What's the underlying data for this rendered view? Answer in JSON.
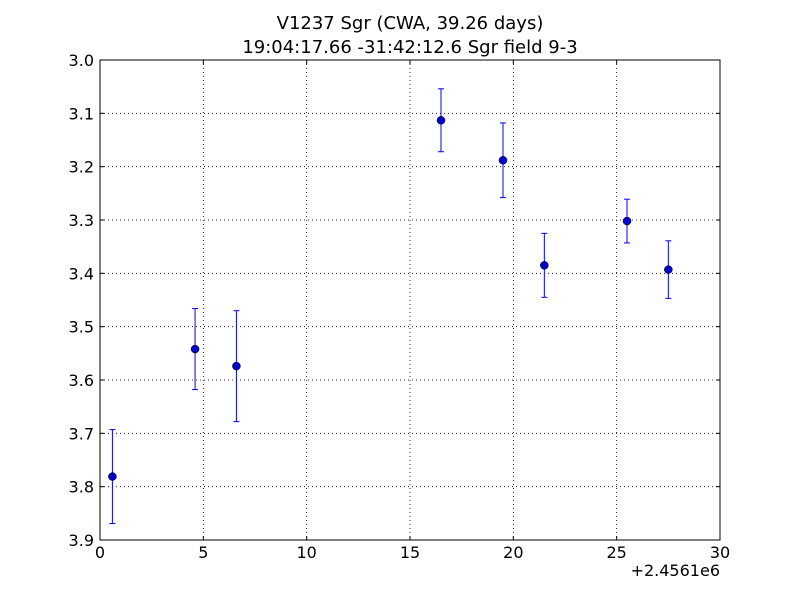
{
  "chart_data": {
    "type": "scatter",
    "title_line1": "V1237 Sgr  (CWA, 39.26 days)",
    "title_line2": "19:04:17.66 -31:42:12.6 Sgr field 9-3",
    "xlabel": "",
    "ylabel": "",
    "x_offset_label": "+2.4561e6",
    "xlim": [
      0,
      30
    ],
    "ylim": [
      3.0,
      3.9
    ],
    "y_inverted": true,
    "grid": true,
    "x_ticks": [
      0,
      5,
      10,
      15,
      20,
      25,
      30
    ],
    "x_tick_labels": [
      "0",
      "5",
      "10",
      "15",
      "20",
      "25",
      "30"
    ],
    "y_ticks": [
      3.0,
      3.1,
      3.2,
      3.3,
      3.4,
      3.5,
      3.6,
      3.7,
      3.8,
      3.9
    ],
    "y_tick_labels": [
      "3.0",
      "3.1",
      "3.2",
      "3.3",
      "3.4",
      "3.5",
      "3.6",
      "3.7",
      "3.8",
      "3.9"
    ],
    "marker_color": "#0000cc",
    "errorbar_color": "#0000ff",
    "series": [
      {
        "points": [
          {
            "x": 0.6,
            "y": 3.781,
            "err": 0.088
          },
          {
            "x": 4.6,
            "y": 3.542,
            "err": 0.076
          },
          {
            "x": 6.6,
            "y": 3.574,
            "err": 0.104
          },
          {
            "x": 16.5,
            "y": 3.113,
            "err": 0.059
          },
          {
            "x": 19.5,
            "y": 3.188,
            "err": 0.07
          },
          {
            "x": 21.5,
            "y": 3.385,
            "err": 0.06
          },
          {
            "x": 25.5,
            "y": 3.302,
            "err": 0.041
          },
          {
            "x": 27.5,
            "y": 3.393,
            "err": 0.054
          }
        ]
      }
    ]
  }
}
